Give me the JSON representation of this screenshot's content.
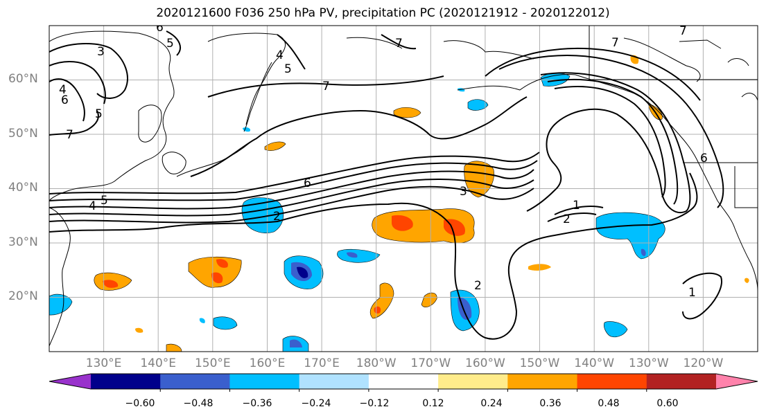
{
  "title": "2020121600 F036 250 hPa PV, precipitation PC (2020121912 - 2020122012)",
  "map": {
    "lon_range": [
      120,
      250
    ],
    "lat_range": [
      10,
      70
    ],
    "gridlines": true,
    "lon_ticks": [
      "130°E",
      "140°E",
      "150°E",
      "160°E",
      "170°E",
      "180°W",
      "170°W",
      "160°W",
      "150°W",
      "140°W",
      "130°W",
      "120°W"
    ],
    "lat_ticks": [
      "20°N",
      "30°N",
      "40°N",
      "50°N",
      "60°N"
    ]
  },
  "contour_labels": [
    "3",
    "4",
    "5",
    "6",
    "7",
    "7",
    "5",
    "4",
    "7",
    "5",
    "4",
    "6",
    "5",
    "6",
    "2",
    "3",
    "1",
    "2",
    "2",
    "1",
    "6",
    "7",
    "7"
  ],
  "colorbar": {
    "ticks": [
      "−0.60",
      "−0.48",
      "−0.36",
      "−0.24",
      "−0.12",
      "0.12",
      "0.24",
      "0.36",
      "0.48",
      "0.60"
    ],
    "colors": [
      "#9932cc",
      "#00008b",
      "#3a5fcd",
      "#00bfff",
      "#b0e2ff",
      "#ffffff",
      "#ffec8b",
      "#ffa500",
      "#ff4500",
      "#b22222",
      "#ff82ab"
    ]
  }
}
